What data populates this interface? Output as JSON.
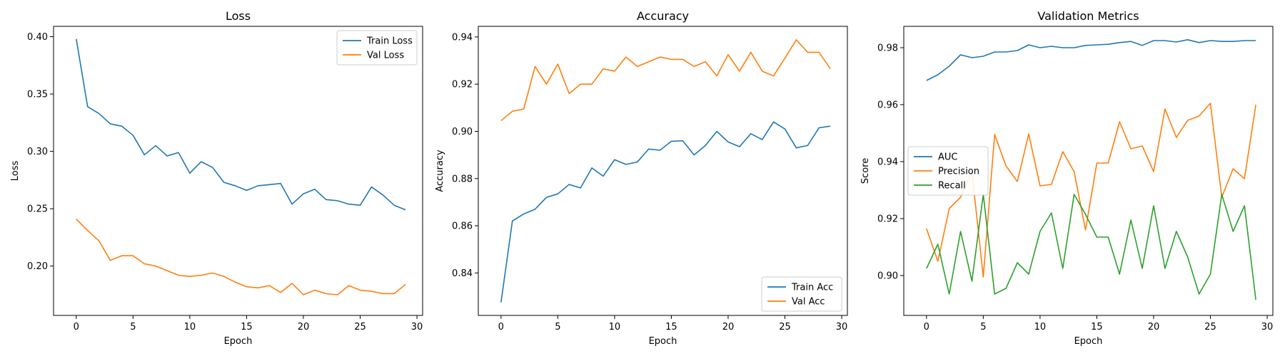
{
  "colors": {
    "blue": "#1f77b4",
    "orange": "#ff7f0e",
    "green": "#2ca02c"
  },
  "chart_data": [
    {
      "type": "line",
      "title": "Loss",
      "xlabel": "Epoch",
      "ylabel": "Loss",
      "xlim": [
        -2,
        30.5
      ],
      "ylim": [
        0.157,
        0.409
      ],
      "xticks": [
        0,
        5,
        10,
        15,
        20,
        25,
        30
      ],
      "yticks": [
        0.2,
        0.25,
        0.3,
        0.35,
        0.4
      ],
      "ytick_decimals": 2,
      "legend_position": "upper right",
      "x": [
        0,
        1,
        2,
        3,
        4,
        5,
        6,
        7,
        8,
        9,
        10,
        11,
        12,
        13,
        14,
        15,
        16,
        17,
        18,
        19,
        20,
        21,
        22,
        23,
        24,
        25,
        26,
        27,
        28,
        29
      ],
      "series": [
        {
          "name": "Train Loss",
          "color": "#1f77b4",
          "values": [
            0.398,
            0.339,
            0.333,
            0.324,
            0.322,
            0.314,
            0.297,
            0.305,
            0.296,
            0.299,
            0.281,
            0.291,
            0.286,
            0.273,
            0.27,
            0.266,
            0.27,
            0.271,
            0.272,
            0.254,
            0.263,
            0.267,
            0.258,
            0.257,
            0.254,
            0.253,
            0.269,
            0.262,
            0.253,
            0.249
          ]
        },
        {
          "name": "Val Loss",
          "color": "#ff7f0e",
          "values": [
            0.241,
            0.231,
            0.222,
            0.205,
            0.209,
            0.209,
            0.202,
            0.2,
            0.196,
            0.192,
            0.191,
            0.192,
            0.194,
            0.191,
            0.186,
            0.182,
            0.181,
            0.183,
            0.177,
            0.185,
            0.175,
            0.179,
            0.176,
            0.175,
            0.183,
            0.179,
            0.178,
            0.176,
            0.176,
            0.184
          ]
        }
      ]
    },
    {
      "type": "line",
      "title": "Accuracy",
      "xlabel": "Epoch",
      "ylabel": "Accuracy",
      "xlim": [
        -2,
        30.5
      ],
      "ylim": [
        0.822,
        0.9445
      ],
      "xticks": [
        0,
        5,
        10,
        15,
        20,
        25,
        30
      ],
      "yticks": [
        0.84,
        0.86,
        0.88,
        0.9,
        0.92,
        0.94
      ],
      "ytick_decimals": 2,
      "legend_position": "lower right",
      "x": [
        0,
        1,
        2,
        3,
        4,
        5,
        6,
        7,
        8,
        9,
        10,
        11,
        12,
        13,
        14,
        15,
        16,
        17,
        18,
        19,
        20,
        21,
        22,
        23,
        24,
        25,
        26,
        27,
        28,
        29
      ],
      "series": [
        {
          "name": "Train Acc",
          "color": "#1f77b4",
          "values": [
            0.8275,
            0.862,
            0.865,
            0.867,
            0.872,
            0.8735,
            0.8775,
            0.876,
            0.8845,
            0.881,
            0.888,
            0.886,
            0.887,
            0.8925,
            0.892,
            0.8958,
            0.896,
            0.89,
            0.894,
            0.9,
            0.8955,
            0.8935,
            0.899,
            0.8965,
            0.904,
            0.901,
            0.893,
            0.894,
            0.9015,
            0.9022
          ]
        },
        {
          "name": "Val Acc",
          "color": "#ff7f0e",
          "values": [
            0.9045,
            0.9085,
            0.9095,
            0.9275,
            0.92,
            0.9285,
            0.916,
            0.92,
            0.92,
            0.9265,
            0.9255,
            0.9315,
            0.9275,
            0.9295,
            0.9315,
            0.9305,
            0.9305,
            0.9275,
            0.9295,
            0.9235,
            0.9325,
            0.9255,
            0.9335,
            0.9255,
            0.9235,
            0.931,
            0.9388,
            0.9335,
            0.9335,
            0.9265
          ]
        }
      ]
    },
    {
      "type": "line",
      "title": "Validation Metrics",
      "xlabel": "Epoch",
      "ylabel": "Score",
      "xlim": [
        -2,
        30.5
      ],
      "ylim": [
        0.886,
        0.9875
      ],
      "xticks": [
        0,
        5,
        10,
        15,
        20,
        25,
        30
      ],
      "yticks": [
        0.9,
        0.92,
        0.94,
        0.96,
        0.98
      ],
      "ytick_decimals": 2,
      "legend_position": "center left",
      "x": [
        0,
        1,
        2,
        3,
        4,
        5,
        6,
        7,
        8,
        9,
        10,
        11,
        12,
        13,
        14,
        15,
        16,
        17,
        18,
        19,
        20,
        21,
        22,
        23,
        24,
        25,
        26,
        27,
        28,
        29
      ],
      "series": [
        {
          "name": "AUC",
          "color": "#1f77b4",
          "values": [
            0.9685,
            0.9705,
            0.9735,
            0.9775,
            0.9765,
            0.977,
            0.9785,
            0.9785,
            0.979,
            0.981,
            0.98,
            0.9805,
            0.98,
            0.98,
            0.9808,
            0.981,
            0.9812,
            0.9818,
            0.9822,
            0.9808,
            0.9825,
            0.9825,
            0.982,
            0.9828,
            0.9818,
            0.9825,
            0.9822,
            0.9822,
            0.9825,
            0.9825
          ]
        },
        {
          "name": "Precision",
          "color": "#ff7f0e",
          "values": [
            0.9165,
            0.905,
            0.9235,
            0.9275,
            0.9365,
            0.8995,
            0.9495,
            0.9385,
            0.933,
            0.9497,
            0.9315,
            0.932,
            0.9435,
            0.9365,
            0.916,
            0.9395,
            0.9395,
            0.954,
            0.9445,
            0.9455,
            0.9365,
            0.9585,
            0.9485,
            0.9545,
            0.956,
            0.9605,
            0.9275,
            0.9375,
            0.934,
            0.96
          ]
        },
        {
          "name": "Recall",
          "color": "#2ca02c",
          "values": [
            0.9025,
            0.911,
            0.8935,
            0.9155,
            0.898,
            0.9285,
            0.8935,
            0.8955,
            0.9045,
            0.9005,
            0.9155,
            0.922,
            0.9025,
            0.9285,
            0.9215,
            0.9135,
            0.9135,
            0.9005,
            0.9195,
            0.9025,
            0.9245,
            0.9025,
            0.9155,
            0.9065,
            0.8935,
            0.9005,
            0.9285,
            0.9155,
            0.9245,
            0.8915
          ]
        }
      ]
    }
  ]
}
